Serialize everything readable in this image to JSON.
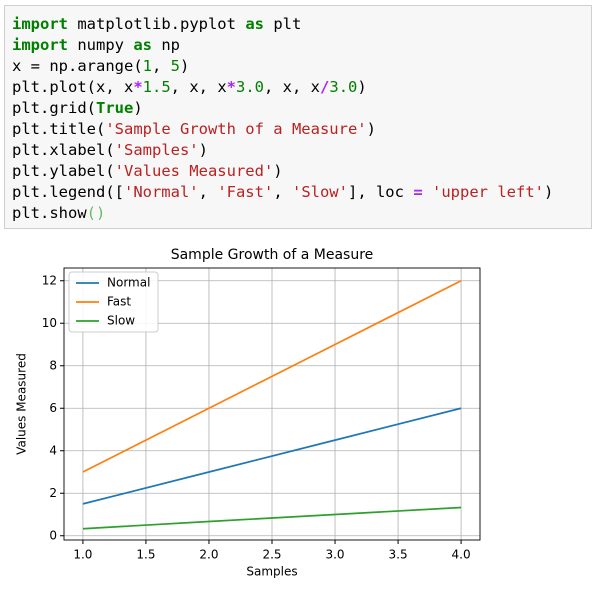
{
  "code": {
    "lines": [
      [
        {
          "text": "import",
          "color": "#008000",
          "bold": true
        },
        {
          "text": " matplotlib.pyplot ",
          "color": "#000000"
        },
        {
          "text": "as",
          "color": "#008000",
          "bold": true
        },
        {
          "text": " plt",
          "color": "#000000"
        }
      ],
      [
        {
          "text": "import",
          "color": "#008000",
          "bold": true
        },
        {
          "text": " numpy ",
          "color": "#000000"
        },
        {
          "text": "as",
          "color": "#008000",
          "bold": true
        },
        {
          "text": " np",
          "color": "#000000"
        }
      ],
      [
        {
          "text": "x = np.arange(",
          "color": "#000000"
        },
        {
          "text": "1",
          "color": "#008000"
        },
        {
          "text": ", ",
          "color": "#000000"
        },
        {
          "text": "5",
          "color": "#008000"
        },
        {
          "text": ")",
          "color": "#000000"
        }
      ],
      [
        {
          "text": "plt.plot(x, x",
          "color": "#000000"
        },
        {
          "text": "*",
          "color": "#aa22ff",
          "bold": true
        },
        {
          "text": "1.5",
          "color": "#008000"
        },
        {
          "text": ", x, x",
          "color": "#000000"
        },
        {
          "text": "*",
          "color": "#aa22ff",
          "bold": true
        },
        {
          "text": "3.0",
          "color": "#008000"
        },
        {
          "text": ", x, x",
          "color": "#000000"
        },
        {
          "text": "/",
          "color": "#aa22ff",
          "bold": true
        },
        {
          "text": "3.0",
          "color": "#008000"
        },
        {
          "text": ")",
          "color": "#000000"
        }
      ],
      [
        {
          "text": "plt.grid(",
          "color": "#000000"
        },
        {
          "text": "True",
          "color": "#008000",
          "bold": true
        },
        {
          "text": ")",
          "color": "#000000"
        }
      ],
      [
        {
          "text": "plt.title(",
          "color": "#000000"
        },
        {
          "text": "'Sample Growth of a Measure'",
          "color": "#ba2121"
        },
        {
          "text": ")",
          "color": "#000000"
        }
      ],
      [
        {
          "text": "plt.xlabel(",
          "color": "#000000"
        },
        {
          "text": "'Samples'",
          "color": "#ba2121"
        },
        {
          "text": ")",
          "color": "#000000"
        }
      ],
      [
        {
          "text": "plt.ylabel(",
          "color": "#000000"
        },
        {
          "text": "'Values Measured'",
          "color": "#ba2121"
        },
        {
          "text": ")",
          "color": "#000000"
        }
      ],
      [
        {
          "text": "plt.legend([",
          "color": "#000000"
        },
        {
          "text": "'Normal'",
          "color": "#ba2121"
        },
        {
          "text": ", ",
          "color": "#000000"
        },
        {
          "text": "'Fast'",
          "color": "#ba2121"
        },
        {
          "text": ", ",
          "color": "#000000"
        },
        {
          "text": "'Slow'",
          "color": "#ba2121"
        },
        {
          "text": "], loc ",
          "color": "#000000"
        },
        {
          "text": "=",
          "color": "#aa22ff",
          "bold": true
        },
        {
          "text": " ",
          "color": "#000000"
        },
        {
          "text": "'upper left'",
          "color": "#ba2121"
        },
        {
          "text": ")",
          "color": "#000000"
        }
      ],
      [
        {
          "text": "plt.show",
          "color": "#000000"
        },
        {
          "text": "()",
          "color": "#66bb66"
        }
      ]
    ]
  },
  "chart_data": {
    "type": "line",
    "title": "Sample Growth of a Measure",
    "xlabel": "Samples",
    "ylabel": "Values Measured",
    "x": [
      1,
      2,
      3,
      4
    ],
    "series": [
      {
        "name": "Normal",
        "color": "#1f77b4",
        "values": [
          1.5,
          3,
          4.5,
          6
        ]
      },
      {
        "name": "Fast",
        "color": "#ff7f0e",
        "values": [
          3,
          6,
          9,
          12
        ]
      },
      {
        "name": "Slow",
        "color": "#2ca02c",
        "values": [
          0.33,
          0.67,
          1,
          1.33
        ]
      }
    ],
    "xlim": [
      0.85,
      4.15
    ],
    "ylim": [
      -0.2,
      12.6
    ],
    "xticks": [
      {
        "value": 1,
        "label": "1.0"
      },
      {
        "value": 1.5,
        "label": "1.5"
      },
      {
        "value": 2,
        "label": "2.0"
      },
      {
        "value": 2.5,
        "label": "2.5"
      },
      {
        "value": 3,
        "label": "3.0"
      },
      {
        "value": 3.5,
        "label": "3.5"
      },
      {
        "value": 4,
        "label": "4.0"
      }
    ],
    "yticks": [
      0,
      2,
      4,
      6,
      8,
      10,
      12
    ],
    "grid": true,
    "legend": "upper-left"
  }
}
